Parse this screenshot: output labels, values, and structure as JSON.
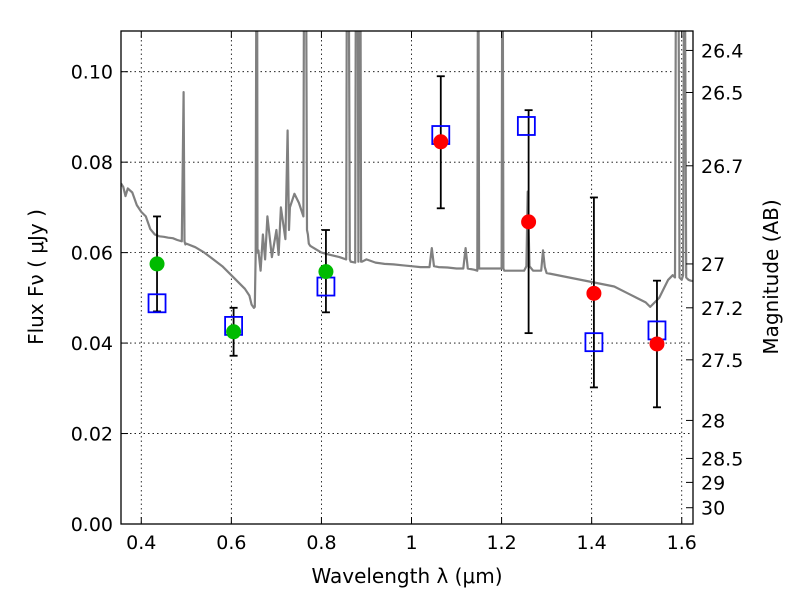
{
  "chart_data": {
    "type": "scatter",
    "xlabel": "Wavelength  λ (μm)",
    "ylabel": "Flux  Fν  ( μJy )",
    "ylabel_right": "Magnitude (AB)",
    "xlim": [
      0.355,
      1.625
    ],
    "ylim": [
      0.0,
      0.109
    ],
    "grid": true,
    "x_ticks": [
      {
        "value": 0.4,
        "label": "0.4"
      },
      {
        "value": 0.6,
        "label": "0.6"
      },
      {
        "value": 0.8,
        "label": "0.8"
      },
      {
        "value": 1.0,
        "label": "1"
      },
      {
        "value": 1.2,
        "label": "1.2"
      },
      {
        "value": 1.4,
        "label": "1.4"
      },
      {
        "value": 1.6,
        "label": "1.6"
      }
    ],
    "y_ticks": [
      {
        "value": 0.0,
        "label": "0.00"
      },
      {
        "value": 0.02,
        "label": "0.02"
      },
      {
        "value": 0.04,
        "label": "0.04"
      },
      {
        "value": 0.06,
        "label": "0.06"
      },
      {
        "value": 0.08,
        "label": "0.08"
      },
      {
        "value": 0.1,
        "label": "0.10"
      }
    ],
    "right_ticks": [
      {
        "flux": 0.1047,
        "label": "26.4"
      },
      {
        "flux": 0.0954,
        "label": "26.5"
      },
      {
        "flux": 0.0792,
        "label": "26.7"
      },
      {
        "flux": 0.0575,
        "label": "27"
      },
      {
        "flux": 0.0478,
        "label": "27.2"
      },
      {
        "flux": 0.0363,
        "label": "27.5"
      },
      {
        "flux": 0.0229,
        "label": "28"
      },
      {
        "flux": 0.0145,
        "label": "28.5"
      },
      {
        "flux": 0.0092,
        "label": "29"
      },
      {
        "flux": 0.0036,
        "label": "30"
      }
    ],
    "series": [
      {
        "color": "#808080",
        "style": "line",
        "x": [
          0.355,
          0.36,
          0.365,
          0.37,
          0.38,
          0.39,
          0.4,
          0.41,
          0.42,
          0.43,
          0.44,
          0.45,
          0.46,
          0.47,
          0.48,
          0.49,
          0.494,
          0.496,
          0.498,
          0.5,
          0.52,
          0.54,
          0.56,
          0.58,
          0.6,
          0.62,
          0.63,
          0.64,
          0.645,
          0.65,
          0.652,
          0.654,
          0.656,
          0.657,
          0.658,
          0.66,
          0.665,
          0.67,
          0.675,
          0.68,
          0.69,
          0.7,
          0.705,
          0.71,
          0.72,
          0.725,
          0.728,
          0.73,
          0.74,
          0.75,
          0.76,
          0.762,
          0.765,
          0.768,
          0.77,
          0.772,
          0.775,
          0.78,
          0.8,
          0.82,
          0.84,
          0.855,
          0.857,
          0.86,
          0.863,
          0.865,
          0.875,
          0.877,
          0.88,
          0.882,
          0.884,
          0.886,
          0.888,
          0.89,
          0.9,
          0.92,
          0.94,
          0.96,
          0.98,
          1.0,
          1.02,
          1.04,
          1.045,
          1.05,
          1.06,
          1.08,
          1.1,
          1.115,
          1.12,
          1.125,
          1.14,
          1.146,
          1.148,
          1.15,
          1.2,
          1.202,
          1.204,
          1.206,
          1.25,
          1.255,
          1.258,
          1.262,
          1.27,
          1.28,
          1.288,
          1.292,
          1.296,
          1.3,
          1.35,
          1.4,
          1.45,
          1.48,
          1.5,
          1.52,
          1.53,
          1.54,
          1.55,
          1.56,
          1.57,
          1.58,
          1.585,
          1.588,
          1.592,
          1.595,
          1.6,
          1.603,
          1.606,
          1.61,
          1.615,
          1.62,
          1.625
        ],
        "y": [
          0.0753,
          0.0745,
          0.0725,
          0.0742,
          0.0733,
          0.0705,
          0.069,
          0.068,
          0.0652,
          0.064,
          0.0636,
          0.0635,
          0.0633,
          0.0632,
          0.0628,
          0.0625,
          0.0955,
          0.0625,
          0.0618,
          0.062,
          0.0612,
          0.06,
          0.0585,
          0.057,
          0.055,
          0.053,
          0.052,
          0.0505,
          0.0485,
          0.0478,
          0.048,
          0.06,
          0.15,
          0.15,
          0.06,
          0.0605,
          0.056,
          0.064,
          0.0585,
          0.068,
          0.059,
          0.065,
          0.0595,
          0.07,
          0.063,
          0.087,
          0.065,
          0.07,
          0.073,
          0.071,
          0.068,
          0.15,
          0.15,
          0.065,
          0.064,
          0.062,
          0.0615,
          0.0612,
          0.06,
          0.0595,
          0.059,
          0.0585,
          0.15,
          0.15,
          0.0585,
          0.058,
          0.0578,
          0.15,
          0.15,
          0.058,
          0.15,
          0.15,
          0.058,
          0.058,
          0.0585,
          0.0578,
          0.0575,
          0.0574,
          0.0572,
          0.057,
          0.0568,
          0.0568,
          0.061,
          0.057,
          0.0568,
          0.0567,
          0.0565,
          0.0565,
          0.061,
          0.0565,
          0.0562,
          0.056,
          0.15,
          0.0565,
          0.0565,
          0.15,
          0.0565,
          0.056,
          0.056,
          0.057,
          0.0735,
          0.057,
          0.056,
          0.056,
          0.056,
          0.0605,
          0.0568,
          0.0555,
          0.0545,
          0.0535,
          0.0525,
          0.051,
          0.05,
          0.049,
          0.048,
          0.049,
          0.05,
          0.052,
          0.054,
          0.055,
          0.0545,
          0.15,
          0.15,
          0.0545,
          0.054,
          0.055,
          0.15,
          0.0545,
          0.054,
          0.0538,
          0.0537
        ]
      },
      {
        "color": "#0000ff",
        "style": "open-square",
        "x": [
          0.435,
          0.605,
          0.81,
          1.065,
          1.255,
          1.405,
          1.545
        ],
        "y": [
          0.0488,
          0.0438,
          0.0525,
          0.086,
          0.088,
          0.0402,
          0.0428
        ]
      },
      {
        "color": "#00bb00",
        "style": "filled-circle",
        "x": [
          0.435,
          0.605,
          0.81
        ],
        "y": [
          0.0575,
          0.0425,
          0.0558
        ],
        "yerr_low": [
          0.047,
          0.0372,
          0.0468
        ],
        "yerr_high": [
          0.068,
          0.0478,
          0.065
        ]
      },
      {
        "color": "#ff0000",
        "style": "filled-circle",
        "x": [
          1.065,
          1.26,
          1.405,
          1.545
        ],
        "y": [
          0.0845,
          0.0668,
          0.051,
          0.0398
        ],
        "yerr_low": [
          0.0698,
          0.0422,
          0.0302,
          0.0258
        ],
        "yerr_high": [
          0.099,
          0.0915,
          0.0722,
          0.0538
        ]
      }
    ]
  }
}
